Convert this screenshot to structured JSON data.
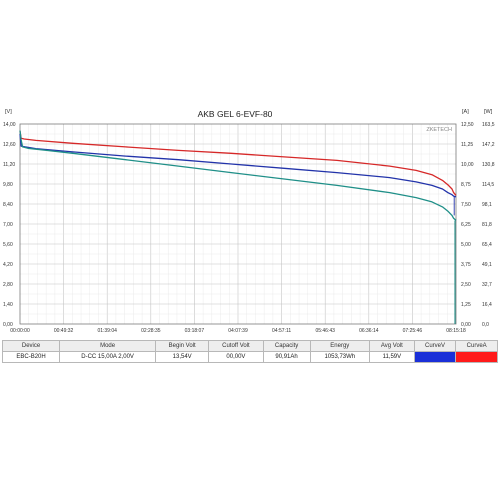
{
  "chart_data": {
    "type": "line",
    "title": "AKB GEL  6-EVF-80",
    "watermark": "ZKETECH",
    "left_unit": "[V]",
    "right_unit_a": "[A]",
    "right_unit_w": "[W]",
    "x_ticks": [
      "00:00:00",
      "00:49:32",
      "01:39:04",
      "02:28:35",
      "03:18:07",
      "04:07:39",
      "04:57:11",
      "05:46:43",
      "06:36:14",
      "07:25:46",
      "08:15:18"
    ],
    "y_ticks_v": [
      "14,00",
      "12,60",
      "11,20",
      "9,80",
      "8,40",
      "7,00",
      "5,60",
      "4,20",
      "2,80",
      "1,40",
      "0,00"
    ],
    "y_ticks_a": [
      "12,50",
      "11,25",
      "10,00",
      "8,75",
      "7,50",
      "6,25",
      "5,00",
      "3,75",
      "2,50",
      "1,25",
      "0,00"
    ],
    "y_ticks_w": [
      "163,5",
      "147,2",
      "130,8",
      "114,5",
      "98,1",
      "81,8",
      "65,4",
      "49,1",
      "32,7",
      "16,4",
      "0,0"
    ],
    "x_range_hours": [
      0,
      8.255
    ],
    "ylim_v": [
      0,
      14
    ],
    "grid": true,
    "series": [
      {
        "key": "red",
        "color": "#d62828",
        "x": [
          0,
          0.02,
          0.08,
          0.3,
          1,
          2,
          3,
          4,
          5,
          6,
          7,
          7.5,
          7.8,
          8.0,
          8.1,
          8.18,
          8.21,
          8.255
        ],
        "y": [
          13.5,
          13.0,
          12.95,
          12.85,
          12.65,
          12.4,
          12.15,
          11.95,
          11.7,
          11.45,
          11.05,
          10.75,
          10.45,
          10.05,
          9.75,
          9.45,
          9.2,
          9.0
        ]
      },
      {
        "key": "blue",
        "color": "#2233aa",
        "x": [
          0,
          0.02,
          0.1,
          0.3,
          1,
          2,
          3,
          4,
          5,
          6,
          7,
          7.5,
          7.8,
          8.0,
          8.1,
          8.18,
          8.21,
          8.255
        ],
        "y": [
          13.3,
          12.45,
          12.4,
          12.28,
          12.05,
          11.75,
          11.5,
          11.2,
          10.9,
          10.6,
          10.25,
          9.95,
          9.7,
          9.45,
          9.2,
          9.05,
          8.95,
          8.9
        ]
      },
      {
        "key": "teal",
        "color": "#1f8f88",
        "x": [
          0,
          0.02,
          0.05,
          0.15,
          0.5,
          1,
          2,
          3,
          4,
          5,
          6,
          7,
          7.5,
          7.8,
          8.0,
          8.1,
          8.18,
          8.21,
          8.255
        ],
        "y": [
          13.54,
          12.9,
          12.4,
          12.3,
          12.15,
          11.95,
          11.5,
          11.05,
          10.6,
          10.15,
          9.7,
          9.2,
          8.85,
          8.55,
          8.2,
          7.9,
          7.6,
          7.4,
          7.25
        ]
      }
    ]
  },
  "summary": {
    "headers": [
      "Device",
      "Mode",
      "Begin Volt",
      "Cutoff Volt",
      "Capacity",
      "Energy",
      "Avg Volt",
      "CurveV",
      "CurveA"
    ],
    "values": [
      "EBC-B20H",
      "D-CC 15,00A  2,00V",
      "13,54V",
      "00,00V",
      "90,91Ah",
      "1053,73Wh",
      "11,59V"
    ],
    "curve_colors": {
      "v": "#1a2fd8",
      "a": "#ff1a1a"
    }
  }
}
